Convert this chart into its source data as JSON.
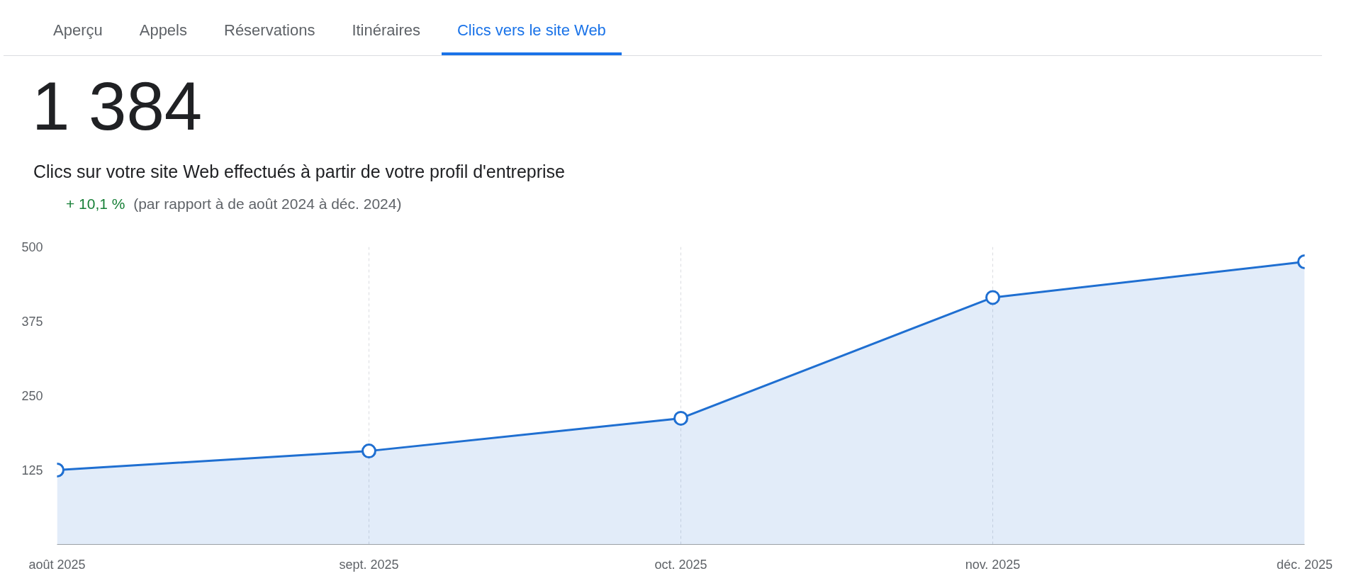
{
  "chart_data": {
    "type": "area",
    "title": "1 384",
    "subtitle": "Clics sur votre site Web effectués à partir de votre profil d'entreprise",
    "annotations": [
      "Aperçu",
      "Appels",
      "Réservations",
      "Itinéraires",
      "Clics vers le site Web",
      "+ 10,1 %",
      "(par rapport à de août 2024 à déc. 2024)"
    ],
    "categories": [
      "août 2025",
      "sept. 2025",
      "oct. 2025",
      "nov. 2025",
      "déc. 2025"
    ],
    "series": [
      {
        "color": "#1f6fd1",
        "values": [
          125,
          157,
          212,
          415,
          475
        ]
      }
    ],
    "ylim": [
      0,
      500
    ],
    "yticks": [
      125,
      250,
      375,
      500
    ],
    "grid": "x",
    "marker": "circle"
  }
}
